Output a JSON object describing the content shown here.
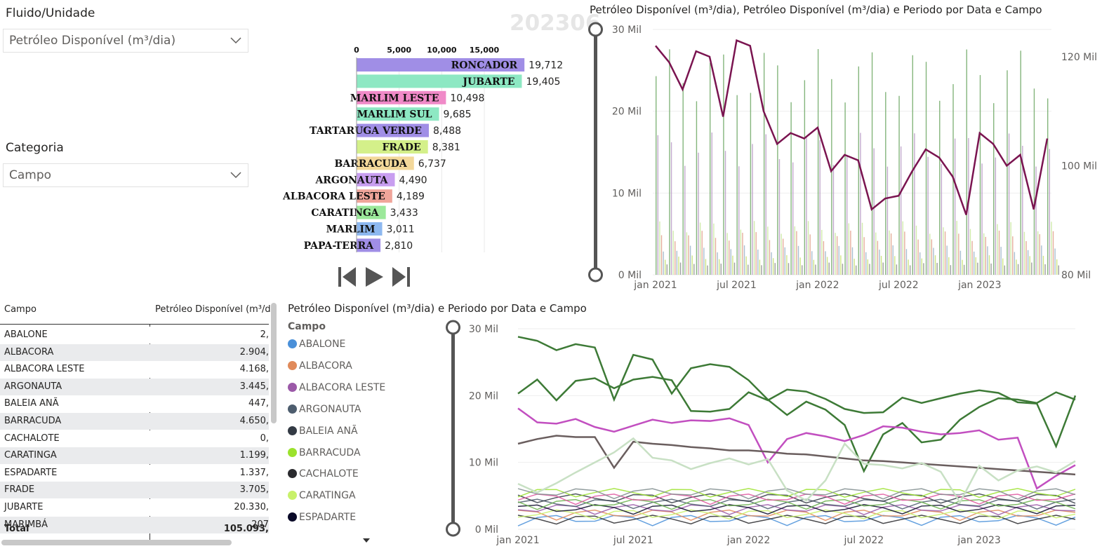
{
  "slicers": {
    "fluid": {
      "title": "Fluido/Unidade",
      "value": "Petróleo Disponível (m³/dia)"
    },
    "category": {
      "title": "Categoria",
      "value": "Campo"
    }
  },
  "race_chart": {
    "period_label": "202306",
    "controls": {
      "prev": "skip-back",
      "play": "play",
      "next": "skip-forward"
    }
  },
  "top_chart": {
    "title": "Petróleo Disponível (m³/dia), Petróleo Disponível (m³/dia) e Periodo por Data e Campo",
    "left_axis": [
      "30 Mil",
      "20 Mil",
      "10 Mil",
      "0 Mil"
    ],
    "right_axis": [
      "120 Mil",
      "100 Mil",
      "80 Mil"
    ],
    "x_axis": [
      "jan 2021",
      "jul 2021",
      "jan 2022",
      "jul 2022",
      "jan 2023"
    ]
  },
  "table": {
    "headers": [
      "Campo",
      "Petróleo Disponível (m³/d"
    ],
    "rows": [
      [
        "ABALONE",
        "2,"
      ],
      [
        "ALBACORA",
        "2.904,"
      ],
      [
        "ALBACORA LESTE",
        "4.168,"
      ],
      [
        "ARGONAUTA",
        "3.445,"
      ],
      [
        "BALEIA ANÃ",
        "447,"
      ],
      [
        "BARRACUDA",
        "4.650,"
      ],
      [
        "CACHALOTE",
        "0,"
      ],
      [
        "CARATINGA",
        "1.199,"
      ],
      [
        "ESPADARTE",
        "1.337,"
      ],
      [
        "FRADE",
        "3.705,"
      ],
      [
        "JUBARTE",
        "20.330,"
      ],
      [
        "MARIMBÁ",
        "207"
      ]
    ],
    "total_label": "Total",
    "total_value": "105.093,"
  },
  "bottom_chart": {
    "title": "Petróleo Disponível (m³/dia) e Periodo por Data e Campo",
    "legend_title": "Campo",
    "legend": [
      {
        "name": "ABALONE",
        "color": "#4a90d9"
      },
      {
        "name": "ALBACORA",
        "color": "#e08a5a"
      },
      {
        "name": "ALBACORA LESTE",
        "color": "#9b59a8"
      },
      {
        "name": "ARGONAUTA",
        "color": "#4d5d6e"
      },
      {
        "name": "BALEIA ANÃ",
        "color": "#333a44"
      },
      {
        "name": "BARRACUDA",
        "color": "#9be22d"
      },
      {
        "name": "CACHALOTE",
        "color": "#2a2a2e"
      },
      {
        "name": "CARATINGA",
        "color": "#c8f16a"
      },
      {
        "name": "ESPADARTE",
        "color": "#0a0a28"
      }
    ],
    "y_axis": [
      "30 Mil",
      "20 Mil",
      "10 Mil",
      "0 Mil"
    ],
    "x_axis": [
      "jan 2021",
      "jul 2021",
      "jan 2022",
      "jul 2022",
      "jan 2023"
    ]
  },
  "chart_data": [
    {
      "type": "bar",
      "orientation": "horizontal",
      "x_ticks": [
        "0",
        "5,000",
        "10,000",
        "15,000"
      ],
      "categories": [
        "RONCADOR",
        "JUBARTE",
        "MARLIM LESTE",
        "MARLIM SUL",
        "TARTARUGA VERDE",
        "FRADE",
        "BARRACUDA",
        "ARGONAUTA",
        "ALBACORA LESTE",
        "CARATINGA",
        "MARLIM",
        "PAPA-TERRA"
      ],
      "values": [
        19712,
        19405,
        10498,
        9685,
        8488,
        8381,
        6737,
        4490,
        4189,
        3433,
        3011,
        2810
      ],
      "value_labels": [
        "19,712",
        "19,405",
        "10,498",
        "9,685",
        "8,488",
        "8,381",
        "6,737",
        "4,490",
        "4,189",
        "3,433",
        "3,011",
        "2,810"
      ],
      "colors": [
        "#a08ee6",
        "#8de8c3",
        "#f08ac8",
        "#8de8c3",
        "#a08ee6",
        "#d4f08a",
        "#f3d89a",
        "#c89ef0",
        "#f0a59a",
        "#9be89a",
        "#8db8f0",
        "#a08ee6"
      ],
      "xlim": [
        0,
        15000
      ]
    },
    {
      "type": "line",
      "x": [
        "jan 2021",
        "fev 2021",
        "mar 2021",
        "abr 2021",
        "mai 2021",
        "jun 2021",
        "jul 2021",
        "ago 2021",
        "set 2021",
        "out 2021",
        "nov 2021",
        "dez 2021",
        "jan 2022",
        "fev 2022",
        "mar 2022",
        "abr 2022",
        "mai 2022",
        "jun 2022",
        "jul 2022",
        "ago 2022",
        "set 2022",
        "out 2022",
        "nov 2022",
        "dez 2022",
        "jan 2023",
        "fev 2023",
        "mar 2023",
        "abr 2023",
        "mai 2023",
        "jun 2023"
      ],
      "series": [
        {
          "axis": "right",
          "color": "#7a1450",
          "values": [
            122,
            119,
            114,
            121,
            120,
            109,
            123,
            122,
            110,
            104,
            106,
            105,
            107,
            99,
            102,
            101,
            92,
            94,
            94.5,
            99,
            103,
            101.5,
            98,
            91,
            106,
            104,
            100,
            102,
            92,
            105
          ]
        }
      ],
      "ylim_left": [
        0,
        30000
      ],
      "ylim_right": [
        80000,
        125000
      ]
    },
    {
      "type": "line",
      "x": [
        "jan 2021",
        "fev 2021",
        "mar 2021",
        "abr 2021",
        "mai 2021",
        "jun 2021",
        "jul 2021",
        "ago 2021",
        "set 2021",
        "out 2021",
        "nov 2021",
        "dez 2021",
        "jan 2022",
        "fev 2022",
        "mar 2022",
        "abr 2022",
        "mai 2022",
        "jun 2022",
        "jul 2022",
        "ago 2022",
        "set 2022",
        "out 2022",
        "nov 2022",
        "dez 2022",
        "jan 2023",
        "fev 2023",
        "mar 2023",
        "abr 2023",
        "mai 2023",
        "jun 2023"
      ],
      "series": [
        {
          "color": "#3d7a36",
          "values": [
            28.8,
            28.2,
            26.8,
            27.7,
            27.2,
            19.4,
            26.1,
            25.4,
            20.3,
            24.1,
            24.7,
            24.3,
            22.3,
            19.4,
            17.1,
            19.1,
            17.9,
            15.6,
            8.7,
            14.2,
            15.9,
            13.0,
            13.4,
            16.4,
            18.3,
            19.6,
            19.4,
            18.9,
            20.5,
            19.4
          ]
        },
        {
          "color": "#3d7a36",
          "values": [
            20.3,
            22.4,
            19.3,
            22.2,
            22.6,
            21.1,
            22.4,
            22.8,
            22.3,
            17.7,
            17.6,
            18.0,
            20.5,
            19.3,
            20.9,
            20.6,
            19.5,
            18.0,
            17.4,
            17.5,
            19.7,
            18.9,
            19.6,
            20.3,
            20.8,
            20.4,
            19.0,
            18.8,
            12.4,
            20.0
          ]
        },
        {
          "color": "#c24fc0",
          "values": [
            18.1,
            16.0,
            15.8,
            16.5,
            15.3,
            14.6,
            15.5,
            16.4,
            15.9,
            16.3,
            16.2,
            16.6,
            15.6,
            10.0,
            13.5,
            14.4,
            13.9,
            13.2,
            14.1,
            15.4,
            15.2,
            14.6,
            14.2,
            14.4,
            14.8,
            13.4,
            13.7,
            6.1,
            8.0,
            9.6
          ]
        },
        {
          "color": "#6a5e5e",
          "values": [
            12.8,
            13.5,
            14.0,
            13.8,
            13.8,
            9.2,
            13.1,
            12.8,
            12.6,
            12.3,
            12.1,
            11.8,
            11.8,
            11.6,
            11.3,
            11.2,
            10.9,
            10.6,
            10.3,
            10.2,
            10.0,
            9.8,
            9.6,
            9.4,
            9.2,
            9.0,
            8.8,
            8.6,
            8.4,
            8.2
          ]
        },
        {
          "color": "#c8e0c4",
          "values": [
            6.8,
            5.5,
            6.9,
            8.5,
            10.0,
            11.5,
            13.6,
            10.7,
            10.3,
            9.0,
            9.9,
            10.6,
            9.7,
            10.5,
            5.8,
            4.3,
            7.3,
            12.8,
            9.8,
            9.6,
            9.1,
            9.9,
            8.6,
            4.0,
            9.5,
            7.3,
            8.8,
            9.4,
            8.5,
            10.2
          ]
        }
      ],
      "ylim": [
        0,
        30000
      ]
    }
  ]
}
